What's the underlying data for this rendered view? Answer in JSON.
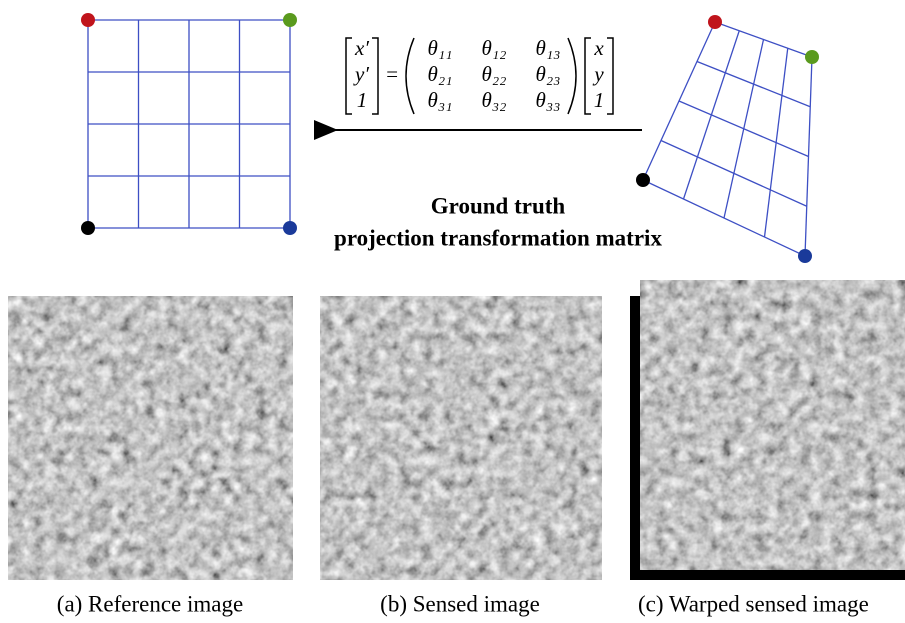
{
  "equation": {
    "lhs": [
      "x′",
      "y′",
      "1"
    ],
    "equals": "=",
    "matrix": [
      [
        "θ₁₁",
        "θ₁₂",
        "θ₁₃"
      ],
      [
        "θ₂₁",
        "θ₂₂",
        "θ₂₃"
      ],
      [
        "θ₃₁",
        "θ₃₂",
        "θ₃₃"
      ]
    ],
    "rhs": [
      "x",
      "y",
      "1"
    ]
  },
  "label": {
    "line1": "Ground truth",
    "line2": "projection transformation matrix"
  },
  "captions": [
    "(a) Reference image",
    "(b) Sensed image",
    "(c) Warped sensed image"
  ]
}
